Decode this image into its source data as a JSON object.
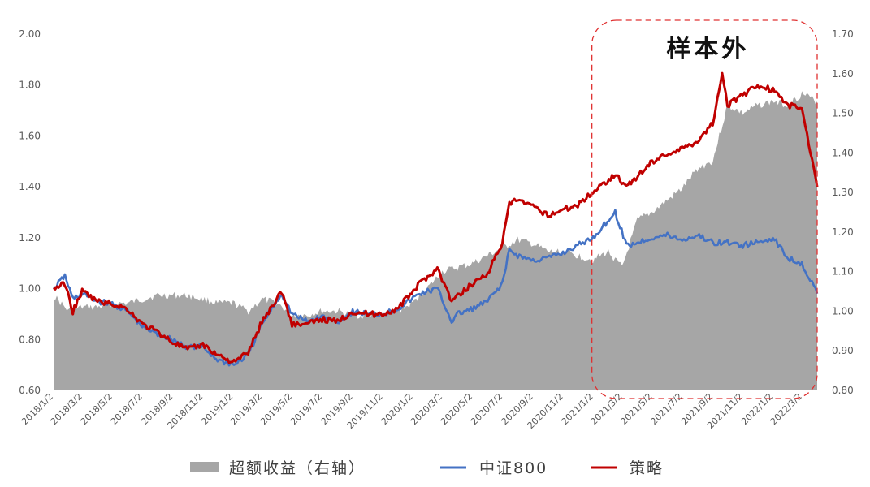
{
  "chart_data": {
    "type": "line",
    "title": "",
    "left_axis": {
      "ylim": [
        0.6,
        2.0
      ],
      "ticks": [
        "0.60",
        "0.80",
        "1.00",
        "1.20",
        "1.40",
        "1.60",
        "1.80",
        "2.00"
      ]
    },
    "right_axis": {
      "ylim": [
        0.8,
        1.7
      ],
      "ticks": [
        "0.80",
        "0.90",
        "1.00",
        "1.10",
        "1.20",
        "1.30",
        "1.40",
        "1.50",
        "1.60",
        "1.70"
      ]
    },
    "x_ticks": [
      "2018/1/2",
      "2018/3/2",
      "2018/5/2",
      "2018/7/2",
      "2018/9/2",
      "2018/11/2",
      "2019/1/2",
      "2019/3/2",
      "2019/5/2",
      "2019/7/2",
      "2019/9/2",
      "2019/11/2",
      "2020/1/2",
      "2020/3/2",
      "2020/5/2",
      "2020/7/2",
      "2020/9/2",
      "2020/11/2",
      "2021/1/2",
      "2021/3/2",
      "2021/5/2",
      "2021/7/2",
      "2021/9/2",
      "2021/11/2",
      "2022/1/2",
      "2022/3/2"
    ],
    "x_range": [
      "2018/1/2",
      "2022/4/1"
    ],
    "annotation": {
      "text": "样本外",
      "start": "2021/1/2",
      "end": "2022/4/1"
    },
    "legend_position": "bottom",
    "series": [
      {
        "name": "超额收益（右轴）",
        "type": "area",
        "axis": "right",
        "color": "#a6a6a6",
        "points": [
          [
            "2018/1/2",
            1.04
          ],
          [
            "2018/2/1",
            1.0
          ],
          [
            "2018/3/1",
            1.01
          ],
          [
            "2018/4/1",
            1.01
          ],
          [
            "2018/5/1",
            1.02
          ],
          [
            "2018/6/1",
            1.02
          ],
          [
            "2018/7/1",
            1.03
          ],
          [
            "2018/8/1",
            1.04
          ],
          [
            "2018/9/1",
            1.04
          ],
          [
            "2018/10/1",
            1.04
          ],
          [
            "2018/11/1",
            1.03
          ],
          [
            "2018/12/1",
            1.02
          ],
          [
            "2019/1/1",
            1.02
          ],
          [
            "2019/2/1",
            1.0
          ],
          [
            "2019/3/1",
            1.03
          ],
          [
            "2019/4/1",
            1.02
          ],
          [
            "2019/5/1",
            0.99
          ],
          [
            "2019/6/1",
            0.99
          ],
          [
            "2019/7/1",
            1.0
          ],
          [
            "2019/8/1",
            1.0
          ],
          [
            "2019/9/1",
            0.99
          ],
          [
            "2019/10/1",
            0.99
          ],
          [
            "2019/11/1",
            0.99
          ],
          [
            "2019/12/1",
            1.0
          ],
          [
            "2020/1/1",
            1.02
          ],
          [
            "2020/2/1",
            1.06
          ],
          [
            "2020/3/1",
            1.1
          ],
          [
            "2020/4/1",
            1.11
          ],
          [
            "2020/5/1",
            1.12
          ],
          [
            "2020/6/1",
            1.14
          ],
          [
            "2020/7/1",
            1.16
          ],
          [
            "2020/8/1",
            1.18
          ],
          [
            "2020/9/1",
            1.17
          ],
          [
            "2020/10/1",
            1.15
          ],
          [
            "2020/11/1",
            1.15
          ],
          [
            "2020/12/1",
            1.14
          ],
          [
            "2021/1/1",
            1.13
          ],
          [
            "2021/2/1",
            1.15
          ],
          [
            "2021/3/1",
            1.11
          ],
          [
            "2021/4/1",
            1.23
          ],
          [
            "2021/5/1",
            1.25
          ],
          [
            "2021/6/1",
            1.28
          ],
          [
            "2021/7/1",
            1.31
          ],
          [
            "2021/8/1",
            1.36
          ],
          [
            "2021/9/1",
            1.38
          ],
          [
            "2021/10/1",
            1.52
          ],
          [
            "2021/11/1",
            1.5
          ],
          [
            "2021/12/1",
            1.52
          ],
          [
            "2022/1/1",
            1.53
          ],
          [
            "2022/2/1",
            1.52
          ],
          [
            "2022/3/1",
            1.55
          ],
          [
            "2022/4/1",
            1.53
          ]
        ]
      },
      {
        "name": "中证800",
        "type": "line",
        "axis": "left",
        "color": "#4472c4",
        "points": [
          [
            "2018/1/2",
            1.0
          ],
          [
            "2018/1/25",
            1.05
          ],
          [
            "2018/2/10",
            0.96
          ],
          [
            "2018/3/1",
            0.98
          ],
          [
            "2018/4/1",
            0.95
          ],
          [
            "2018/5/1",
            0.94
          ],
          [
            "2018/6/1",
            0.91
          ],
          [
            "2018/7/1",
            0.85
          ],
          [
            "2018/8/1",
            0.82
          ],
          [
            "2018/9/1",
            0.8
          ],
          [
            "2018/10/1",
            0.77
          ],
          [
            "2018/11/1",
            0.77
          ],
          [
            "2018/12/1",
            0.72
          ],
          [
            "2019/1/3",
            0.7
          ],
          [
            "2019/2/1",
            0.74
          ],
          [
            "2019/3/1",
            0.86
          ],
          [
            "2019/4/10",
            0.98
          ],
          [
            "2019/5/1",
            0.9
          ],
          [
            "2019/6/1",
            0.87
          ],
          [
            "2019/7/1",
            0.89
          ],
          [
            "2019/8/1",
            0.87
          ],
          [
            "2019/9/1",
            0.91
          ],
          [
            "2019/10/1",
            0.9
          ],
          [
            "2019/11/1",
            0.9
          ],
          [
            "2019/12/1",
            0.92
          ],
          [
            "2020/1/15",
            0.98
          ],
          [
            "2020/2/20",
            1.0
          ],
          [
            "2020/3/20",
            0.87
          ],
          [
            "2020/4/1",
            0.9
          ],
          [
            "2020/5/1",
            0.92
          ],
          [
            "2020/6/1",
            0.95
          ],
          [
            "2020/7/1",
            1.02
          ],
          [
            "2020/7/15",
            1.15
          ],
          [
            "2020/8/1",
            1.13
          ],
          [
            "2020/9/1",
            1.11
          ],
          [
            "2020/10/1",
            1.12
          ],
          [
            "2020/11/1",
            1.14
          ],
          [
            "2020/12/1",
            1.17
          ],
          [
            "2021/1/1",
            1.2
          ],
          [
            "2021/2/15",
            1.3
          ],
          [
            "2021/3/10",
            1.17
          ],
          [
            "2021/4/1",
            1.18
          ],
          [
            "2021/5/1",
            1.2
          ],
          [
            "2021/6/1",
            1.21
          ],
          [
            "2021/7/1",
            1.19
          ],
          [
            "2021/8/1",
            1.21
          ],
          [
            "2021/9/1",
            1.18
          ],
          [
            "2021/10/1",
            1.18
          ],
          [
            "2021/11/1",
            1.17
          ],
          [
            "2021/12/1",
            1.18
          ],
          [
            "2022/1/1",
            1.2
          ],
          [
            "2022/2/1",
            1.12
          ],
          [
            "2022/3/1",
            1.1
          ],
          [
            "2022/4/1",
            0.98
          ]
        ]
      },
      {
        "name": "策略",
        "type": "line",
        "axis": "left",
        "color": "#c00000",
        "points": [
          [
            "2018/1/2",
            1.0
          ],
          [
            "2018/1/25",
            1.02
          ],
          [
            "2018/2/10",
            0.91
          ],
          [
            "2018/3/1",
            0.99
          ],
          [
            "2018/4/1",
            0.95
          ],
          [
            "2018/5/1",
            0.94
          ],
          [
            "2018/6/1",
            0.92
          ],
          [
            "2018/7/1",
            0.86
          ],
          [
            "2018/8/1",
            0.83
          ],
          [
            "2018/9/1",
            0.79
          ],
          [
            "2018/10/1",
            0.76
          ],
          [
            "2018/11/1",
            0.78
          ],
          [
            "2018/12/1",
            0.74
          ],
          [
            "2019/1/3",
            0.71
          ],
          [
            "2019/2/1",
            0.75
          ],
          [
            "2019/3/1",
            0.87
          ],
          [
            "2019/4/10",
            0.99
          ],
          [
            "2019/5/1",
            0.86
          ],
          [
            "2019/6/1",
            0.86
          ],
          [
            "2019/7/1",
            0.88
          ],
          [
            "2019/8/1",
            0.87
          ],
          [
            "2019/9/1",
            0.91
          ],
          [
            "2019/10/1",
            0.9
          ],
          [
            "2019/11/1",
            0.9
          ],
          [
            "2019/12/1",
            0.92
          ],
          [
            "2020/1/15",
            1.02
          ],
          [
            "2020/2/20",
            1.08
          ],
          [
            "2020/3/20",
            0.95
          ],
          [
            "2020/4/1",
            0.97
          ],
          [
            "2020/5/1",
            1.02
          ],
          [
            "2020/6/1",
            1.06
          ],
          [
            "2020/7/1",
            1.18
          ],
          [
            "2020/7/15",
            1.33
          ],
          [
            "2020/8/1",
            1.35
          ],
          [
            "2020/9/1",
            1.32
          ],
          [
            "2020/10/1",
            1.29
          ],
          [
            "2020/11/1",
            1.31
          ],
          [
            "2020/12/1",
            1.33
          ],
          [
            "2021/1/1",
            1.38
          ],
          [
            "2021/2/15",
            1.45
          ],
          [
            "2021/3/10",
            1.4
          ],
          [
            "2021/4/1",
            1.44
          ],
          [
            "2021/5/1",
            1.5
          ],
          [
            "2021/6/1",
            1.53
          ],
          [
            "2021/7/1",
            1.55
          ],
          [
            "2021/8/1",
            1.58
          ],
          [
            "2021/9/1",
            1.65
          ],
          [
            "2021/9/20",
            1.85
          ],
          [
            "2021/10/1",
            1.72
          ],
          [
            "2021/11/1",
            1.76
          ],
          [
            "2021/12/1",
            1.8
          ],
          [
            "2022/1/1",
            1.78
          ],
          [
            "2022/2/1",
            1.72
          ],
          [
            "2022/3/1",
            1.71
          ],
          [
            "2022/4/1",
            1.4
          ]
        ]
      }
    ]
  }
}
